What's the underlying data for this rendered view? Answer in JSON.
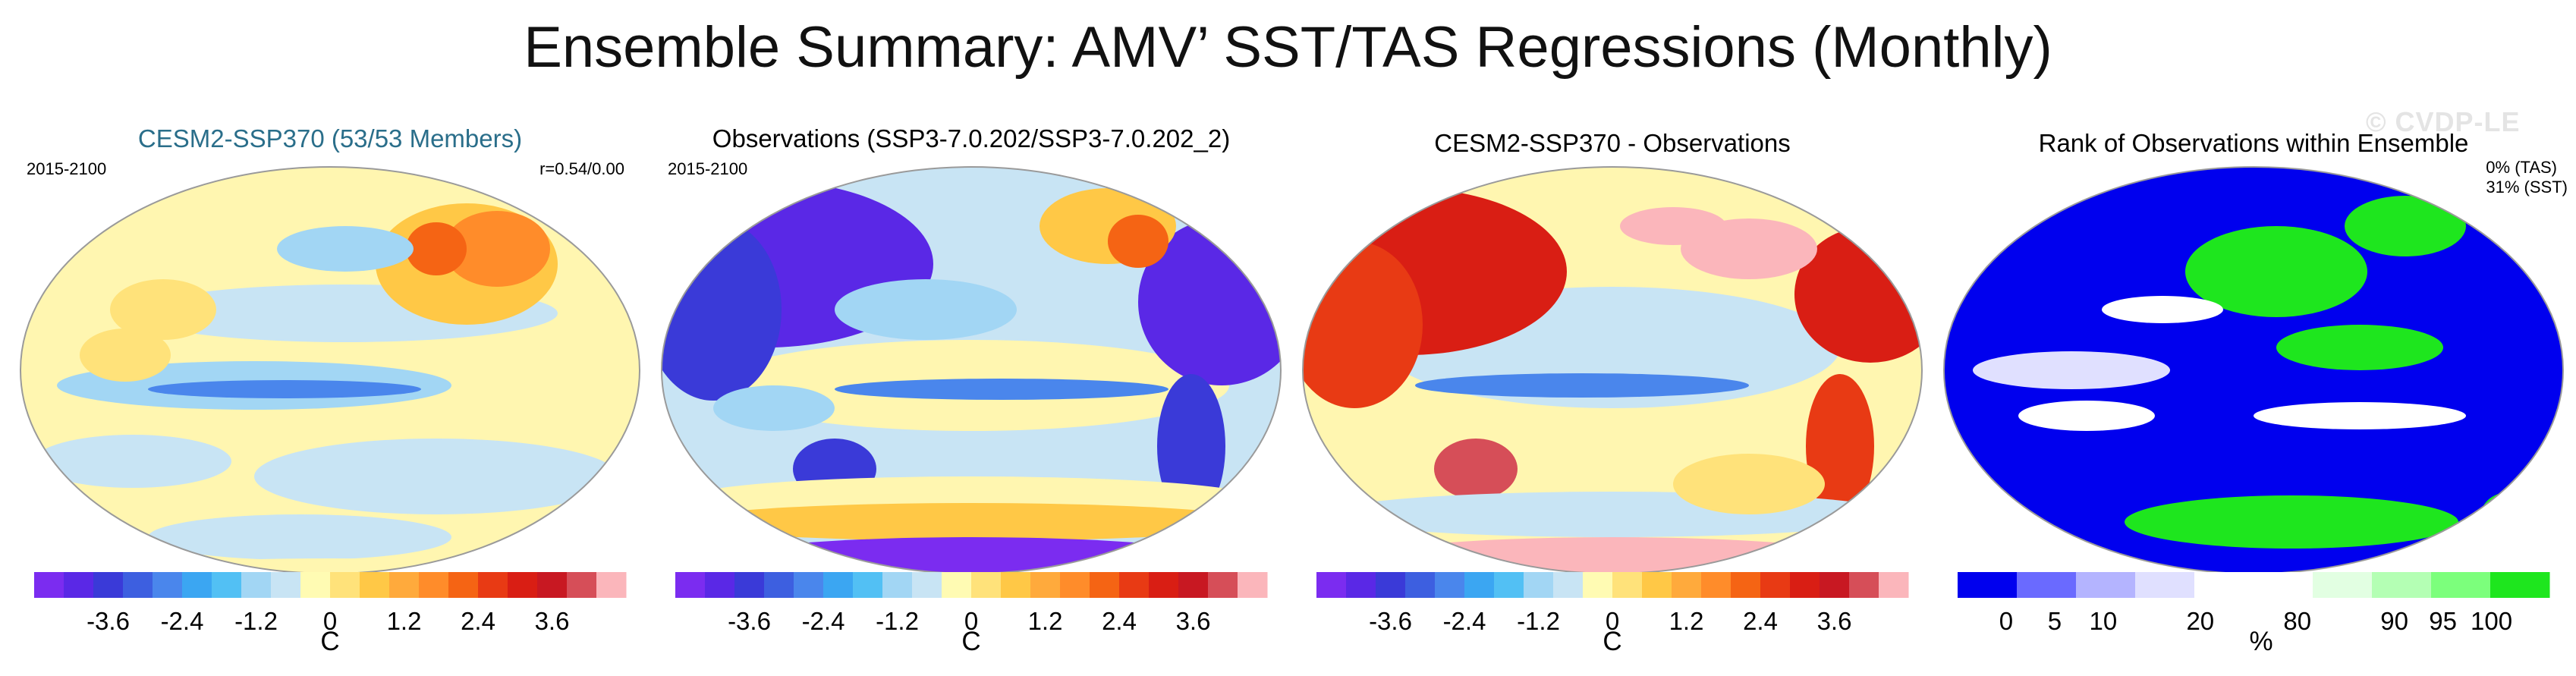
{
  "title": "Ensemble Summary: AMV’ SST/TAS Regressions (Monthly)",
  "watermark": "© CVDP-LE",
  "chart_data": [
    {
      "type": "heatmap",
      "title": "CESM2-SSP370 (53/53 Members)",
      "title_color": "#2a6e8a",
      "period": "2015-2100",
      "annotation": "r=0.54/0.00",
      "colorbar": {
        "colors": [
          "#7b2cf0",
          "#5a28e6",
          "#3a3ad8",
          "#3d5fe0",
          "#4a86ec",
          "#3ba6f2",
          "#52c0f4",
          "#a2d6f4",
          "#c8e4f4",
          "#fffbb3",
          "#ffe27a",
          "#ffc846",
          "#ffaa3c",
          "#ff8c2a",
          "#f56414",
          "#e83a14",
          "#d91e14",
          "#c81822",
          "#d64e58",
          "#fbb6bb"
        ],
        "ticks": [
          "-3.6",
          "-2.4",
          "-1.2",
          "0",
          "1.2",
          "2.4",
          "3.6"
        ],
        "unit": "C",
        "min": -4.8,
        "max": 4.8
      }
    },
    {
      "type": "heatmap",
      "title": "Observations (SSP3-7.0.202/SSP3-7.0.202_2)",
      "title_color": "#000000",
      "period": "2015-2100",
      "colorbar": {
        "colors": [
          "#7b2cf0",
          "#5a28e6",
          "#3a3ad8",
          "#3d5fe0",
          "#4a86ec",
          "#3ba6f2",
          "#52c0f4",
          "#a2d6f4",
          "#c8e4f4",
          "#fffbb3",
          "#ffe27a",
          "#ffc846",
          "#ffaa3c",
          "#ff8c2a",
          "#f56414",
          "#e83a14",
          "#d91e14",
          "#c81822",
          "#d64e58",
          "#fbb6bb"
        ],
        "ticks": [
          "-3.6",
          "-2.4",
          "-1.2",
          "0",
          "1.2",
          "2.4",
          "3.6"
        ],
        "unit": "C",
        "min": -4.8,
        "max": 4.8
      }
    },
    {
      "type": "heatmap",
      "title": "CESM2-SSP370 - Observations",
      "title_color": "#000000",
      "colorbar": {
        "colors": [
          "#7b2cf0",
          "#5a28e6",
          "#3a3ad8",
          "#3d5fe0",
          "#4a86ec",
          "#3ba6f2",
          "#52c0f4",
          "#a2d6f4",
          "#c8e4f4",
          "#fffbb3",
          "#ffe27a",
          "#ffc846",
          "#ffaa3c",
          "#ff8c2a",
          "#f56414",
          "#e83a14",
          "#d91e14",
          "#c81822",
          "#d64e58",
          "#fbb6bb"
        ],
        "ticks": [
          "-3.6",
          "-2.4",
          "-1.2",
          "0",
          "1.2",
          "2.4",
          "3.6"
        ],
        "unit": "C",
        "min": -4.8,
        "max": 4.8
      }
    },
    {
      "type": "heatmap",
      "title": "Rank of Observations within Ensemble",
      "title_color": "#000000",
      "annotation_lines": [
        "0% (TAS)",
        "31% (SST)"
      ],
      "colorbar": {
        "colors": [
          "#0000ee",
          "#6a6aff",
          "#b4b4ff",
          "#e0e0ff",
          "#ffffff",
          "#ffffff",
          "#e2ffe2",
          "#b4ffb4",
          "#7cff7c",
          "#1ee61e"
        ],
        "boundaries": [
          0,
          5,
          10,
          20,
          80,
          90,
          95,
          100
        ],
        "ticks": [
          "0",
          "5",
          "10",
          "20",
          "80",
          "90",
          "95",
          "100"
        ],
        "tick_fractions": [
          0.082,
          0.164,
          0.246,
          0.41,
          0.574,
          0.738,
          0.82,
          0.902
        ],
        "unit": "%"
      }
    }
  ]
}
